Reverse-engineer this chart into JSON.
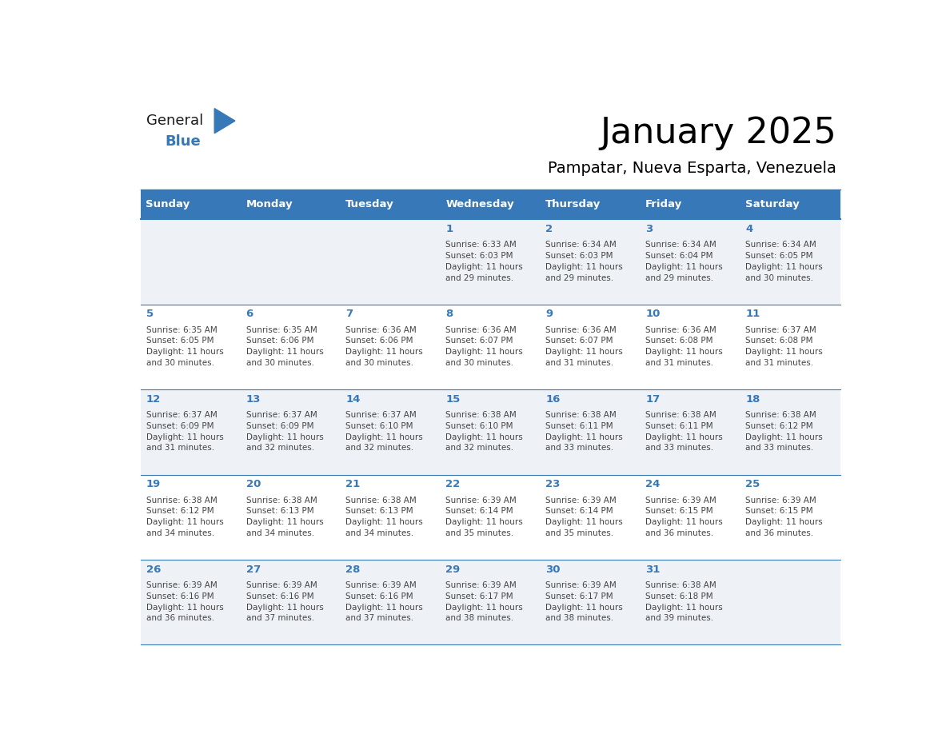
{
  "title": "January 2025",
  "subtitle": "Pampatar, Nueva Esparta, Venezuela",
  "header_color": "#3778b8",
  "header_text_color": "#ffffff",
  "cell_bg_color_odd": "#eef2f7",
  "cell_bg_color_even": "#ffffff",
  "day_number_color": "#3778b8",
  "text_color": "#444444",
  "line_color": "#3778b8",
  "weekdays": [
    "Sunday",
    "Monday",
    "Tuesday",
    "Wednesday",
    "Thursday",
    "Friday",
    "Saturday"
  ],
  "days": [
    {
      "day": 1,
      "col": 3,
      "row": 0,
      "sunrise": "6:33 AM",
      "sunset": "6:03 PM",
      "daylight_h": "11 hours",
      "daylight_m": "and 29 minutes."
    },
    {
      "day": 2,
      "col": 4,
      "row": 0,
      "sunrise": "6:34 AM",
      "sunset": "6:03 PM",
      "daylight_h": "11 hours",
      "daylight_m": "and 29 minutes."
    },
    {
      "day": 3,
      "col": 5,
      "row": 0,
      "sunrise": "6:34 AM",
      "sunset": "6:04 PM",
      "daylight_h": "11 hours",
      "daylight_m": "and 29 minutes."
    },
    {
      "day": 4,
      "col": 6,
      "row": 0,
      "sunrise": "6:34 AM",
      "sunset": "6:05 PM",
      "daylight_h": "11 hours",
      "daylight_m": "and 30 minutes."
    },
    {
      "day": 5,
      "col": 0,
      "row": 1,
      "sunrise": "6:35 AM",
      "sunset": "6:05 PM",
      "daylight_h": "11 hours",
      "daylight_m": "and 30 minutes."
    },
    {
      "day": 6,
      "col": 1,
      "row": 1,
      "sunrise": "6:35 AM",
      "sunset": "6:06 PM",
      "daylight_h": "11 hours",
      "daylight_m": "and 30 minutes."
    },
    {
      "day": 7,
      "col": 2,
      "row": 1,
      "sunrise": "6:36 AM",
      "sunset": "6:06 PM",
      "daylight_h": "11 hours",
      "daylight_m": "and 30 minutes."
    },
    {
      "day": 8,
      "col": 3,
      "row": 1,
      "sunrise": "6:36 AM",
      "sunset": "6:07 PM",
      "daylight_h": "11 hours",
      "daylight_m": "and 30 minutes."
    },
    {
      "day": 9,
      "col": 4,
      "row": 1,
      "sunrise": "6:36 AM",
      "sunset": "6:07 PM",
      "daylight_h": "11 hours",
      "daylight_m": "and 31 minutes."
    },
    {
      "day": 10,
      "col": 5,
      "row": 1,
      "sunrise": "6:36 AM",
      "sunset": "6:08 PM",
      "daylight_h": "11 hours",
      "daylight_m": "and 31 minutes."
    },
    {
      "day": 11,
      "col": 6,
      "row": 1,
      "sunrise": "6:37 AM",
      "sunset": "6:08 PM",
      "daylight_h": "11 hours",
      "daylight_m": "and 31 minutes."
    },
    {
      "day": 12,
      "col": 0,
      "row": 2,
      "sunrise": "6:37 AM",
      "sunset": "6:09 PM",
      "daylight_h": "11 hours",
      "daylight_m": "and 31 minutes."
    },
    {
      "day": 13,
      "col": 1,
      "row": 2,
      "sunrise": "6:37 AM",
      "sunset": "6:09 PM",
      "daylight_h": "11 hours",
      "daylight_m": "and 32 minutes."
    },
    {
      "day": 14,
      "col": 2,
      "row": 2,
      "sunrise": "6:37 AM",
      "sunset": "6:10 PM",
      "daylight_h": "11 hours",
      "daylight_m": "and 32 minutes."
    },
    {
      "day": 15,
      "col": 3,
      "row": 2,
      "sunrise": "6:38 AM",
      "sunset": "6:10 PM",
      "daylight_h": "11 hours",
      "daylight_m": "and 32 minutes."
    },
    {
      "day": 16,
      "col": 4,
      "row": 2,
      "sunrise": "6:38 AM",
      "sunset": "6:11 PM",
      "daylight_h": "11 hours",
      "daylight_m": "and 33 minutes."
    },
    {
      "day": 17,
      "col": 5,
      "row": 2,
      "sunrise": "6:38 AM",
      "sunset": "6:11 PM",
      "daylight_h": "11 hours",
      "daylight_m": "and 33 minutes."
    },
    {
      "day": 18,
      "col": 6,
      "row": 2,
      "sunrise": "6:38 AM",
      "sunset": "6:12 PM",
      "daylight_h": "11 hours",
      "daylight_m": "and 33 minutes."
    },
    {
      "day": 19,
      "col": 0,
      "row": 3,
      "sunrise": "6:38 AM",
      "sunset": "6:12 PM",
      "daylight_h": "11 hours",
      "daylight_m": "and 34 minutes."
    },
    {
      "day": 20,
      "col": 1,
      "row": 3,
      "sunrise": "6:38 AM",
      "sunset": "6:13 PM",
      "daylight_h": "11 hours",
      "daylight_m": "and 34 minutes."
    },
    {
      "day": 21,
      "col": 2,
      "row": 3,
      "sunrise": "6:38 AM",
      "sunset": "6:13 PM",
      "daylight_h": "11 hours",
      "daylight_m": "and 34 minutes."
    },
    {
      "day": 22,
      "col": 3,
      "row": 3,
      "sunrise": "6:39 AM",
      "sunset": "6:14 PM",
      "daylight_h": "11 hours",
      "daylight_m": "and 35 minutes."
    },
    {
      "day": 23,
      "col": 4,
      "row": 3,
      "sunrise": "6:39 AM",
      "sunset": "6:14 PM",
      "daylight_h": "11 hours",
      "daylight_m": "and 35 minutes."
    },
    {
      "day": 24,
      "col": 5,
      "row": 3,
      "sunrise": "6:39 AM",
      "sunset": "6:15 PM",
      "daylight_h": "11 hours",
      "daylight_m": "and 36 minutes."
    },
    {
      "day": 25,
      "col": 6,
      "row": 3,
      "sunrise": "6:39 AM",
      "sunset": "6:15 PM",
      "daylight_h": "11 hours",
      "daylight_m": "and 36 minutes."
    },
    {
      "day": 26,
      "col": 0,
      "row": 4,
      "sunrise": "6:39 AM",
      "sunset": "6:16 PM",
      "daylight_h": "11 hours",
      "daylight_m": "and 36 minutes."
    },
    {
      "day": 27,
      "col": 1,
      "row": 4,
      "sunrise": "6:39 AM",
      "sunset": "6:16 PM",
      "daylight_h": "11 hours",
      "daylight_m": "and 37 minutes."
    },
    {
      "day": 28,
      "col": 2,
      "row": 4,
      "sunrise": "6:39 AM",
      "sunset": "6:16 PM",
      "daylight_h": "11 hours",
      "daylight_m": "and 37 minutes."
    },
    {
      "day": 29,
      "col": 3,
      "row": 4,
      "sunrise": "6:39 AM",
      "sunset": "6:17 PM",
      "daylight_h": "11 hours",
      "daylight_m": "and 38 minutes."
    },
    {
      "day": 30,
      "col": 4,
      "row": 4,
      "sunrise": "6:39 AM",
      "sunset": "6:17 PM",
      "daylight_h": "11 hours",
      "daylight_m": "and 38 minutes."
    },
    {
      "day": 31,
      "col": 5,
      "row": 4,
      "sunrise": "6:38 AM",
      "sunset": "6:18 PM",
      "daylight_h": "11 hours",
      "daylight_m": "and 39 minutes."
    }
  ],
  "num_rows": 5,
  "logo_text_general": "General",
  "logo_text_blue": "Blue",
  "logo_triangle_color": "#3778b8"
}
